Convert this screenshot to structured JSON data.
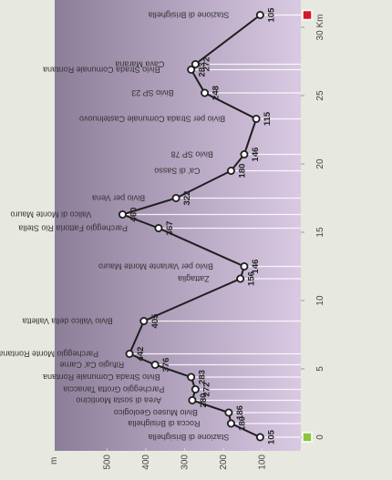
{
  "chart_data": {
    "type": "line",
    "y_label": "m",
    "x": [
      0,
      1.0,
      1.8,
      2.7,
      3.5,
      4.4,
      5.3,
      6.1,
      8.5,
      11.6,
      12.5,
      15.3,
      16.3,
      17.5,
      19.5,
      20.7,
      23.3,
      25.2,
      26.9,
      27.3,
      30.9
    ],
    "labels": [
      "Stazione di Brisighella",
      "Rocca di Brisighella",
      "Bivio Museo Geologico",
      "Area di sosta Monticino",
      "Parcheggio Grotta Tanaccia",
      "Bivio Strada Comunale Rontana",
      "Rifugio Ca' Carne",
      "Parcheggio Monte Rontana",
      "Bivio Valico della Valletta",
      "Zattaglia",
      "Bivio per Variante Monte Mauro",
      "Parcheggio Fattoria Rio Stella",
      "Valico di Monte Mauro",
      "Bivio per Vena",
      "Ca' di Sasso",
      "Bivio SP 78",
      "Bivio per Strada Comunale Castelnuovo",
      "Bivio SP 23",
      "Bivio Strada Comunale Rontana",
      "Cava Marana",
      "Stazione di Brisighella"
    ],
    "series": [
      {
        "color": "#1e1e1e",
        "values": [
          105,
          180,
          186,
          280,
          272,
          283,
          376,
          442,
          405,
          156,
          146,
          367,
          460,
          322,
          180,
          146,
          115,
          248,
          283,
          272,
          105
        ]
      }
    ],
    "xlim": [
      -1,
      32
    ],
    "xticks": [
      0,
      5,
      10,
      15,
      20,
      25,
      {
        "value": 30,
        "label": "30 Km"
      }
    ],
    "ylim": [
      0,
      635
    ],
    "yticks": [
      100,
      200,
      300,
      400,
      500
    ],
    "background_colors": [
      "#8c7d99",
      "#d9c9e3"
    ],
    "start_color": "#8cc63f",
    "end_color": "#d7182a"
  }
}
